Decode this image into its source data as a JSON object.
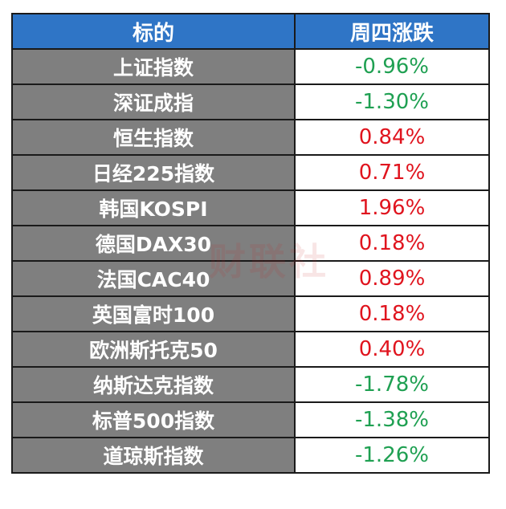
{
  "header": {
    "col_name": "标的",
    "col_change": "周四涨跌"
  },
  "rows": [
    {
      "name": "上证指数",
      "change": "-0.96%",
      "color": "#1fa052"
    },
    {
      "name": "深证成指",
      "change": "-1.30%",
      "color": "#1fa052"
    },
    {
      "name": "恒生指数",
      "change": "0.84%",
      "color": "#e0141e"
    },
    {
      "name": "日经225指数",
      "change": "0.71%",
      "color": "#e0141e"
    },
    {
      "name": "韩国KOSPI",
      "change": "1.96%",
      "color": "#e0141e"
    },
    {
      "name": "德国DAX30",
      "change": "0.18%",
      "color": "#e0141e"
    },
    {
      "name": "法国CAC40",
      "change": "0.89%",
      "color": "#e0141e"
    },
    {
      "name": "英国富时100",
      "change": "0.18%",
      "color": "#e0141e"
    },
    {
      "name": "欧洲斯托克50",
      "change": "0.40%",
      "color": "#e0141e"
    },
    {
      "name": "纳斯达克指数",
      "change": "-1.78%",
      "color": "#1fa052"
    },
    {
      "name": "标普500指数",
      "change": "-1.38%",
      "color": "#1fa052"
    },
    {
      "name": "道琼斯指数",
      "change": "-1.26%",
      "color": "#1fa052"
    }
  ],
  "colors": {
    "header_bg": "#2f75c6",
    "name_bg": "#7f7f7f",
    "up": "#e0141e",
    "down": "#1fa052"
  },
  "watermark": {
    "text": "财联社"
  }
}
